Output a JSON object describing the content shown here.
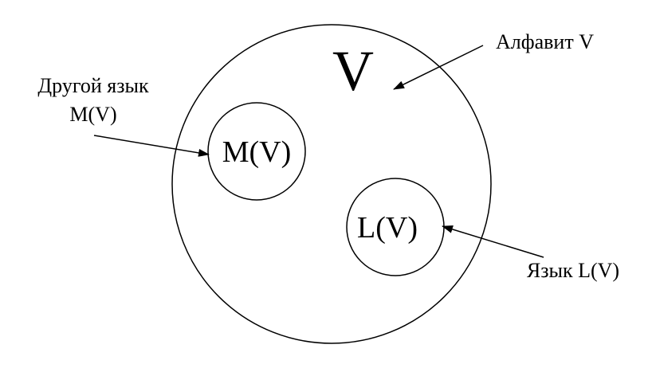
{
  "diagram": {
    "alphabet_symbol": "V",
    "inner_sets": {
      "m_label": "M(V)",
      "l_label": "L(V)"
    },
    "annotations": {
      "alphabet": "Алфавит V",
      "other_language_line1": "Другой язык",
      "other_language_line2": "M(V)",
      "language": "Язык L(V)"
    },
    "colors": {
      "stroke": "#000000",
      "background": "#ffffff"
    }
  }
}
